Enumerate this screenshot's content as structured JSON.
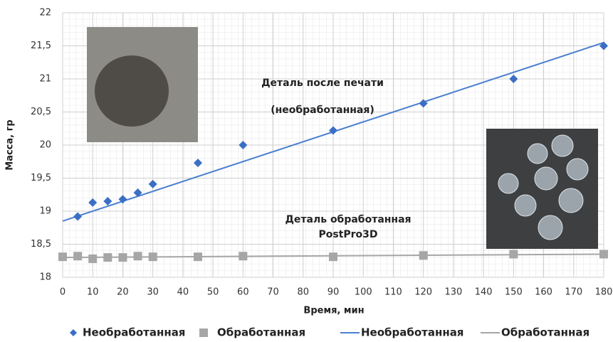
{
  "chart_data": {
    "type": "scatter",
    "xlabel": "Время, мин",
    "ylabel": "Масса, гр",
    "xlim": [
      0,
      180
    ],
    "ylim": [
      18,
      22
    ],
    "xticks": [
      0,
      10,
      20,
      30,
      40,
      50,
      60,
      70,
      80,
      90,
      100,
      110,
      120,
      130,
      140,
      150,
      160,
      170,
      180
    ],
    "yticks": [
      18,
      {
        "value": 18.5,
        "label": "18,5"
      },
      19,
      {
        "value": 19.5,
        "label": "19,5"
      },
      20,
      {
        "value": 20.5,
        "label": "20,5"
      },
      21,
      {
        "value": 21.5,
        "label": "21,5"
      },
      22
    ],
    "grid": true,
    "annotations": [
      "Деталь после печати",
      "(необработанная)",
      "Деталь обработанная",
      "PostPro3D"
    ],
    "series": [
      {
        "name": "Необработанная",
        "color": "#3a6fc4",
        "marker": "diamond",
        "x": [
          5,
          10,
          15,
          20,
          25,
          30,
          45,
          60,
          90,
          120,
          150,
          180
        ],
        "values": [
          18.92,
          19.13,
          19.15,
          19.18,
          19.28,
          19.41,
          19.73,
          20.0,
          20.22,
          20.63,
          21.0,
          21.5
        ]
      },
      {
        "name": "Обработанная",
        "color": "#a6a6a6",
        "marker": "square",
        "x": [
          0,
          5,
          10,
          15,
          20,
          25,
          30,
          45,
          60,
          90,
          120,
          150,
          180
        ],
        "values": [
          18.31,
          18.32,
          18.28,
          18.3,
          18.3,
          18.32,
          18.31,
          18.31,
          18.32,
          18.31,
          18.33,
          18.35,
          18.35
        ]
      },
      {
        "name": "Необработанная",
        "color": "#4a7fd0",
        "marker": "line",
        "x": [
          0,
          180
        ],
        "values": [
          18.85,
          21.55
        ]
      },
      {
        "name": "Обработанная",
        "color": "#a6a6a6",
        "marker": "line",
        "x": [
          0,
          180
        ],
        "values": [
          18.3,
          18.35
        ]
      }
    ]
  }
}
